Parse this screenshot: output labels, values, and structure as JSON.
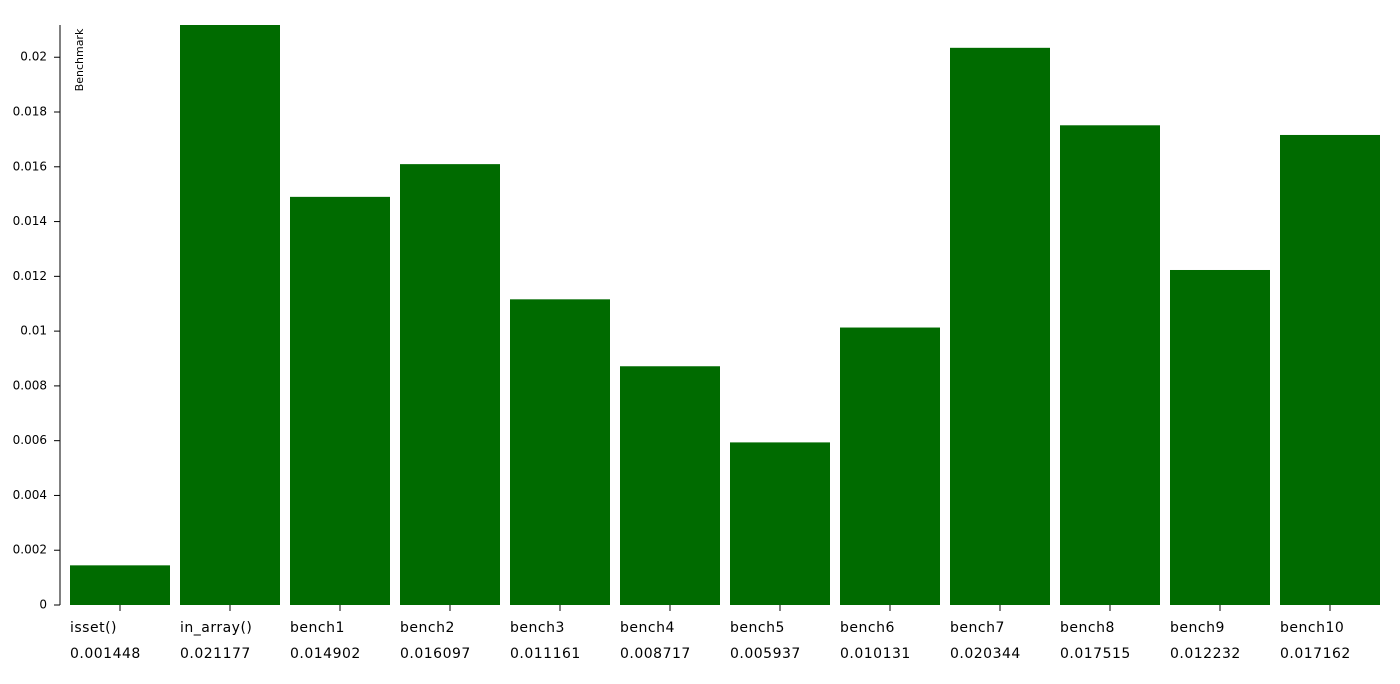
{
  "chart_data": {
    "type": "bar",
    "y_label": "Benchmark",
    "categories": [
      "isset()",
      "in_array()",
      "bench1",
      "bench2",
      "bench3",
      "bench4",
      "bench5",
      "bench6",
      "bench7",
      "bench8",
      "bench9",
      "bench10"
    ],
    "values": [
      0.001448,
      0.021177,
      0.014902,
      0.016097,
      0.011161,
      0.008717,
      0.005937,
      0.010131,
      0.020344,
      0.017515,
      0.012232,
      0.017162
    ],
    "color": "#006b00",
    "ylim": [
      0,
      0.021177
    ],
    "yticks": [
      0,
      0.002,
      0.004,
      0.006,
      0.008,
      0.01,
      0.012,
      0.014,
      0.016,
      0.018,
      0.02
    ],
    "grid": false
  }
}
